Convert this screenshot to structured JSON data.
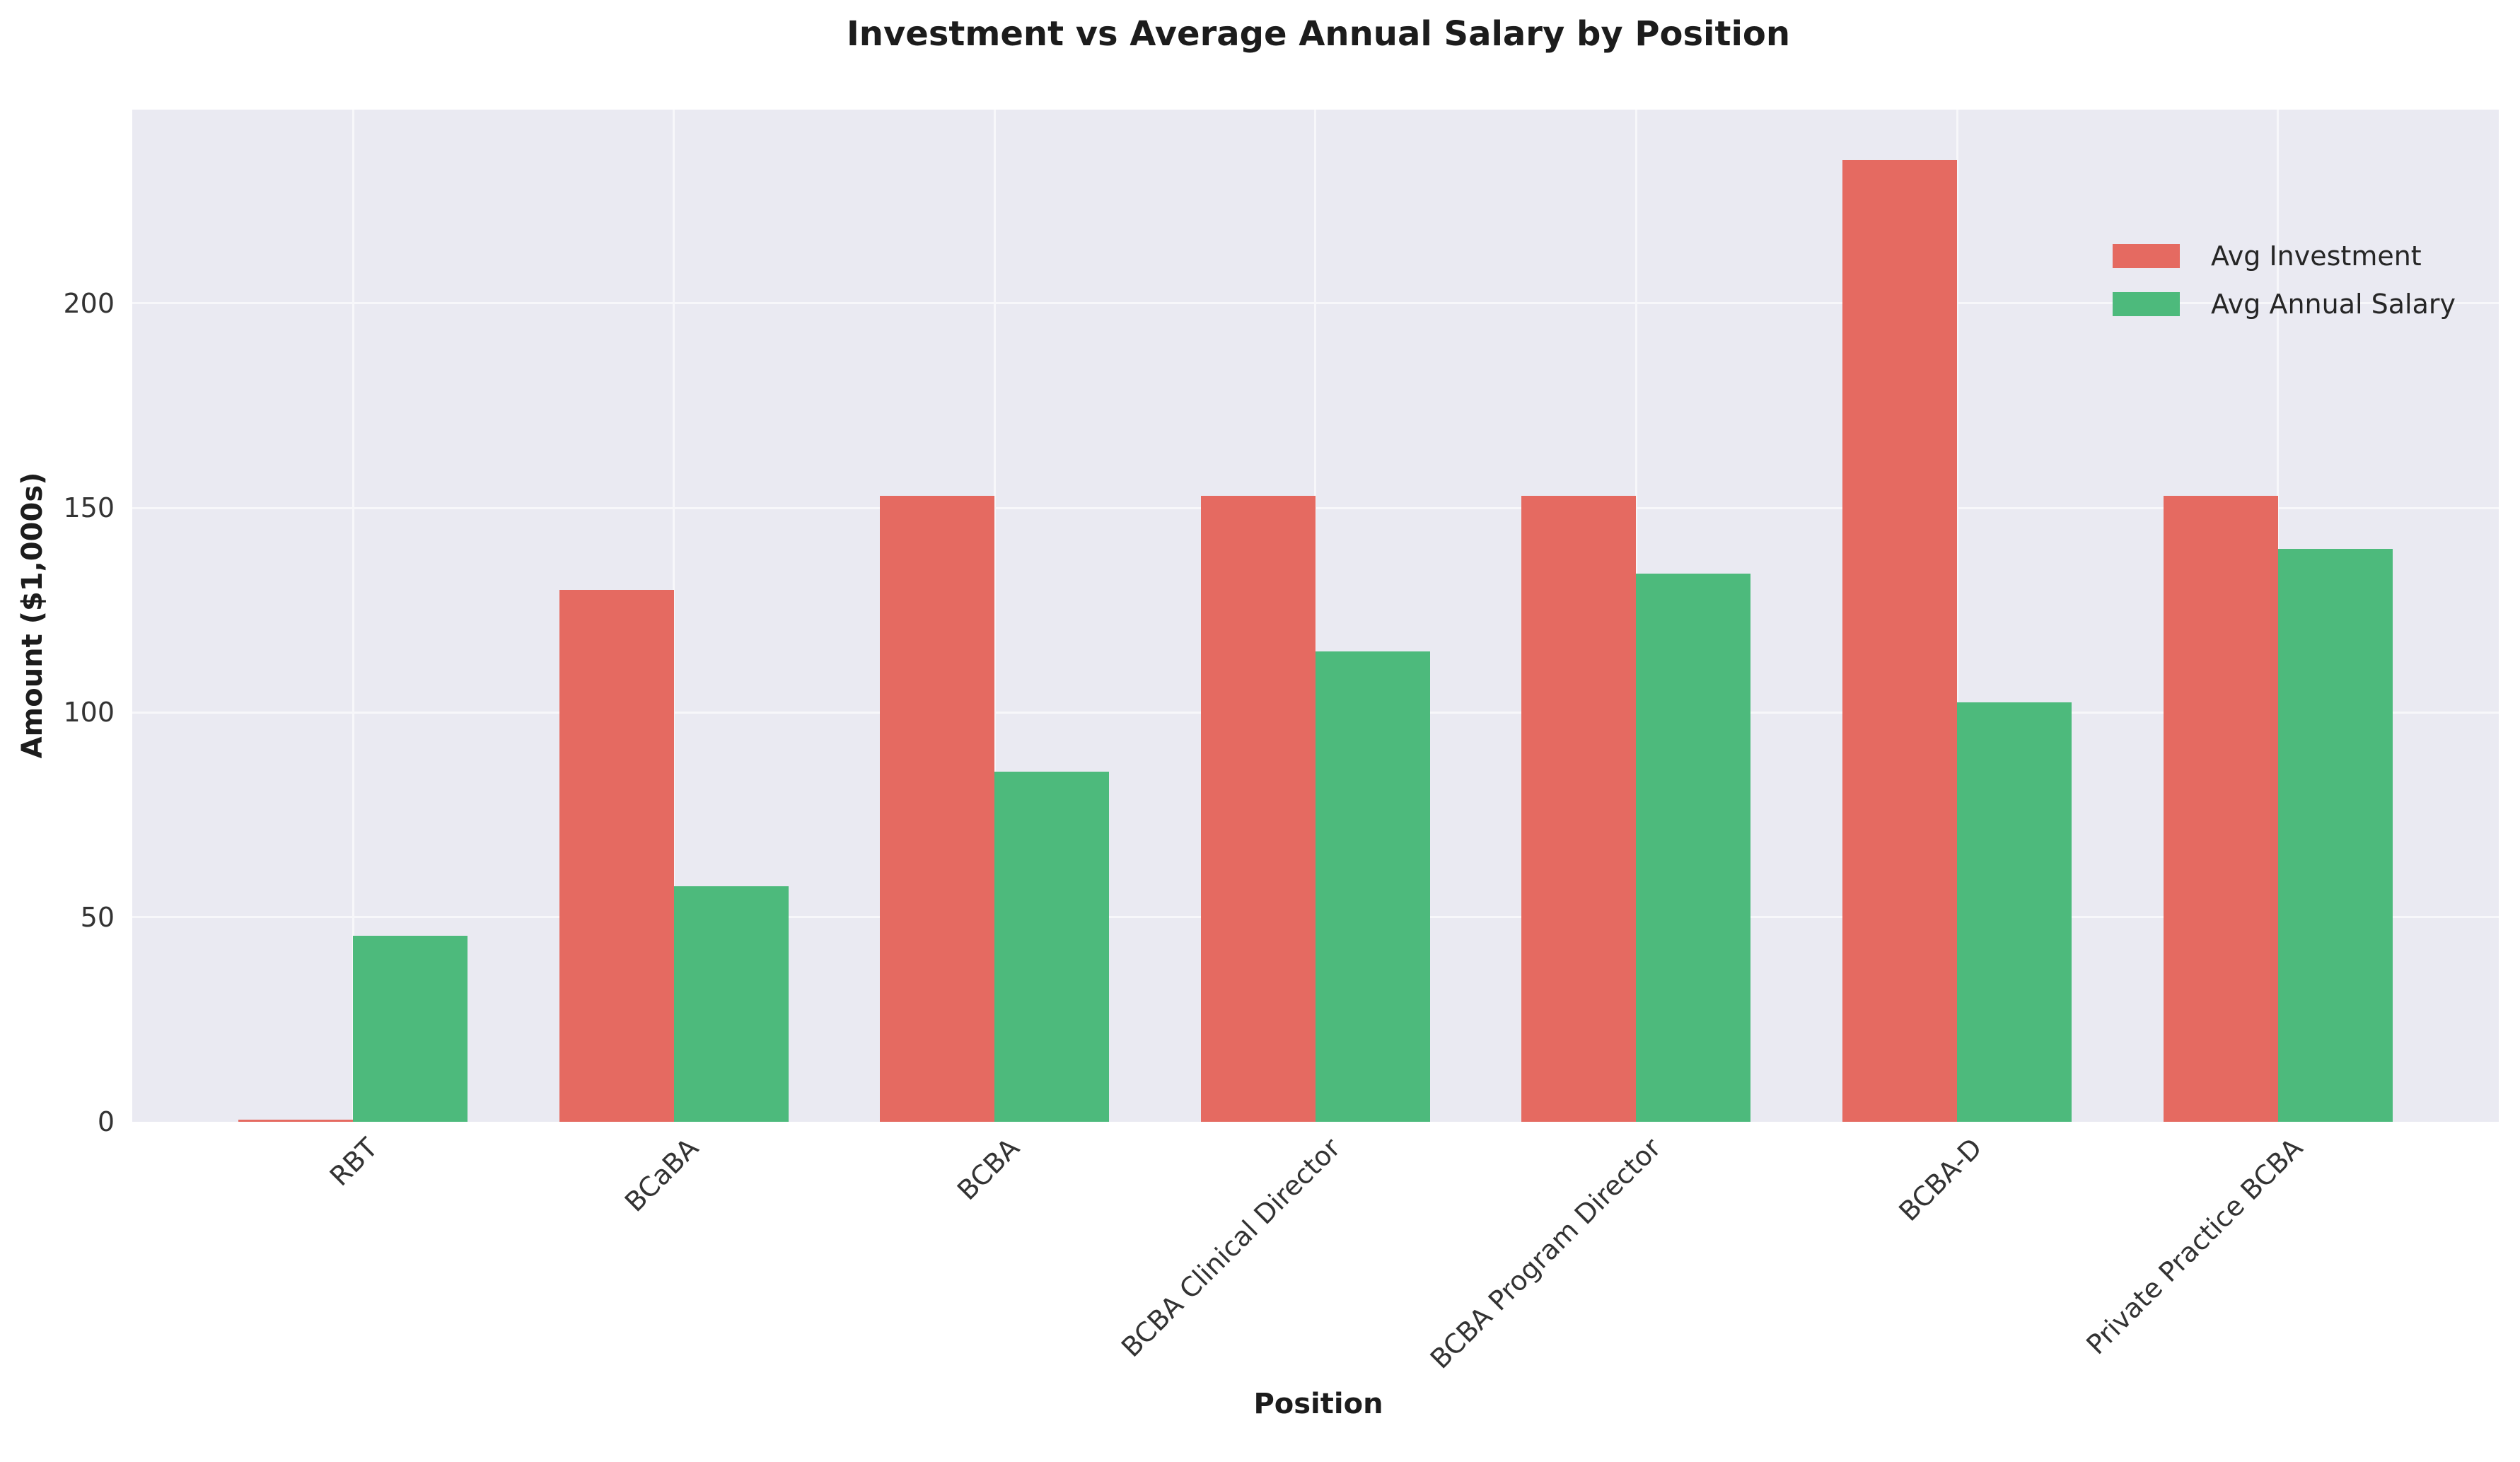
{
  "chart_data": {
    "type": "bar",
    "title": "Investment vs Average Annual Salary by Position",
    "xlabel": "Position",
    "ylabel": "Amount ($1,000s)",
    "categories": [
      "RBT",
      "BCaBA",
      "BCBA",
      "BCBA Clinical Director",
      "BCBA Program Director",
      "BCBA-D",
      "Private Practice BCBA"
    ],
    "series": [
      {
        "name": "Avg Investment",
        "color": "#e56a61",
        "values": [
          0.5,
          130,
          153,
          153,
          153,
          235,
          153
        ]
      },
      {
        "name": "Avg Annual Salary",
        "color": "#4dba7c",
        "values": [
          45.5,
          57.5,
          85.5,
          115,
          134,
          102.5,
          140
        ]
      }
    ],
    "yticks": [
      0,
      50,
      100,
      150,
      200
    ],
    "ylim": [
      0,
      247.3
    ],
    "grid": true,
    "grid_color": "#ffffff",
    "plot_background": "#eaeaf2",
    "legend_position": "upper right",
    "xtick_rotation": 45
  }
}
